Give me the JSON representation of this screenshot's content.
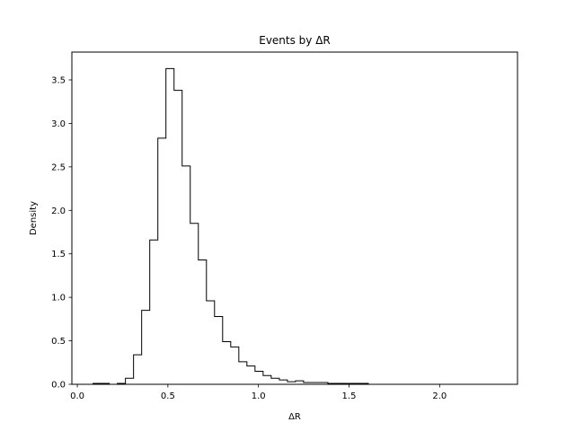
{
  "chart_data": {
    "type": "histogram",
    "histtype": "step",
    "title": "Events by ΔR",
    "xlabel": "ΔR",
    "ylabel": "Density",
    "xlim": [
      -0.03,
      2.43
    ],
    "ylim": [
      0,
      3.82
    ],
    "xticks": [
      0.0,
      0.5,
      1.0,
      1.5,
      2.0
    ],
    "xtick_labels": [
      "0.0",
      "0.5",
      "1.0",
      "1.5",
      "2.0"
    ],
    "yticks": [
      0.0,
      0.5,
      1.0,
      1.5,
      2.0,
      2.5,
      3.0,
      3.5
    ],
    "ytick_labels": [
      "0.0",
      "0.5",
      "1.0",
      "1.5",
      "2.0",
      "2.5",
      "3.0",
      "3.5"
    ],
    "bin_width": 0.0447,
    "bin_edges_start": 0.087,
    "densities": [
      0.01,
      0.01,
      0.0,
      0.01,
      0.07,
      0.34,
      0.85,
      1.66,
      2.83,
      3.63,
      3.38,
      2.51,
      1.85,
      1.43,
      0.96,
      0.78,
      0.49,
      0.43,
      0.26,
      0.21,
      0.15,
      0.1,
      0.07,
      0.05,
      0.03,
      0.04,
      0.02,
      0.02,
      0.02,
      0.01,
      0.01,
      0.01,
      0.01,
      0.01,
      0.0,
      0.0,
      0.0,
      0.0,
      0.0,
      0.0,
      0.0,
      0.0,
      0.0,
      0.0,
      0.0,
      0.0,
      0.0,
      0.0,
      0.0,
      0.0
    ],
    "line_color": "#000000",
    "grid": false
  }
}
